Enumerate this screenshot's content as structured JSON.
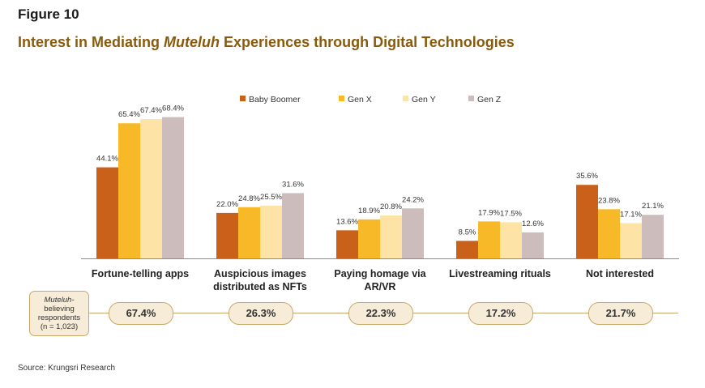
{
  "figure_label": "Figure 10",
  "title_pre": "Interest in Mediating ",
  "title_em": "Muteluh",
  "title_post": " Experiences through Digital Technologies",
  "respondents": {
    "em": "Muteluh-",
    "line2": "believing",
    "line3": "respondents",
    "line4": "(n = 1,023)",
    "values": [
      "67.4%",
      "26.3%",
      "22.3%",
      "17.2%",
      "21.7%"
    ]
  },
  "source": "Source: Krungsri Research",
  "chart_data": {
    "type": "bar",
    "categories": [
      [
        "Fortune-telling apps"
      ],
      [
        "Auspicious images",
        "distributed as NFTs"
      ],
      [
        "Paying homage via",
        "AR/VR"
      ],
      [
        "Livestreaming rituals"
      ],
      [
        "Not interested"
      ]
    ],
    "series": [
      {
        "name": "Baby Boomer",
        "color": "#c9611b",
        "values": [
          44.1,
          22.0,
          13.6,
          8.5,
          35.6
        ],
        "labels": [
          "44.1%",
          "22.0%",
          "13.6%",
          "8.5%",
          "35.6%"
        ]
      },
      {
        "name": "Gen X",
        "color": "#f7b928",
        "values": [
          65.4,
          24.8,
          18.9,
          17.9,
          23.8
        ],
        "labels": [
          "65.4%",
          "24.8%",
          "18.9%",
          "17.9%",
          "23.8%"
        ]
      },
      {
        "name": "Gen Y",
        "color": "#fde3a5",
        "values": [
          67.4,
          25.5,
          20.8,
          17.5,
          17.1
        ],
        "labels": [
          "67.4%",
          "25.5%",
          "20.8%",
          "17.5%",
          "17.1%"
        ]
      },
      {
        "name": "Gen Z",
        "color": "#ccbcbc",
        "values": [
          68.4,
          31.6,
          24.2,
          12.6,
          21.1
        ],
        "labels": [
          "68.4%",
          "31.6%",
          "24.2%",
          "12.6%",
          "21.1%"
        ]
      }
    ],
    "ylim": [
      0,
      100
    ],
    "legend": "top-right",
    "grid": false
  }
}
